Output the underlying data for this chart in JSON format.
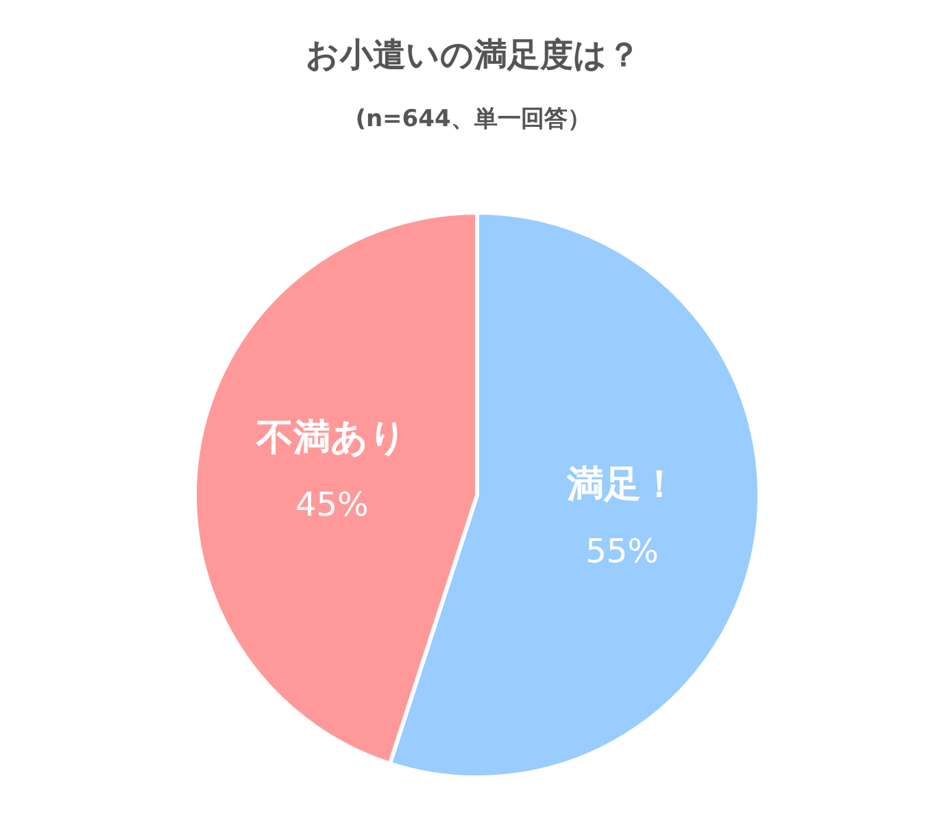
{
  "chart_data": {
    "type": "pie",
    "title": "お小遣いの満足度は？",
    "subtitle": "(n=644、単一回答）",
    "categories": [
      "満足！",
      "不満あり"
    ],
    "values": [
      55,
      45
    ],
    "colors": [
      "#99ccff",
      "#ff9999"
    ],
    "value_labels": [
      "55%",
      "45%"
    ],
    "legend": false
  }
}
